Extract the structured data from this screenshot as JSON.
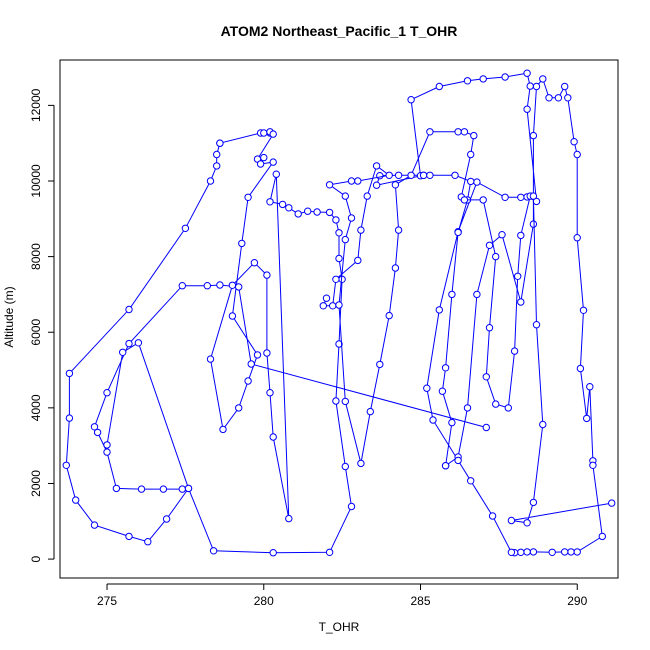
{
  "chart_data": {
    "type": "line",
    "title": "ATOM2 Northeast_Pacific_1 T_OHR",
    "xlabel": "T_OHR",
    "ylabel": "Altitude (m)",
    "xlim": [
      273.5,
      291.3
    ],
    "ylim": [
      -500,
      13200
    ],
    "xticks": [
      275,
      280,
      285,
      290
    ],
    "yticks": [
      0,
      2000,
      4000,
      6000,
      8000,
      10000,
      12000
    ],
    "grid": false,
    "legend": "none",
    "series": [
      {
        "color": "#0000ff",
        "marker": "open-circle",
        "points": [
          [
            287.1,
            3480
          ],
          [
            279.6,
            5160
          ],
          [
            279.2,
            7200
          ],
          [
            278.6,
            7250
          ],
          [
            278.2,
            7230
          ],
          [
            277.4,
            7230
          ],
          [
            275.7,
            5700
          ],
          [
            275.0,
            4400
          ],
          [
            274.6,
            3500
          ],
          [
            274.7,
            3350
          ],
          [
            275.0,
            2830
          ],
          [
            275.3,
            1870
          ],
          [
            276.1,
            1850
          ],
          [
            276.8,
            1850
          ],
          [
            277.4,
            1850
          ],
          [
            277.6,
            1870
          ],
          [
            276.9,
            1060
          ],
          [
            276.3,
            460
          ],
          [
            275.7,
            600
          ],
          [
            274.6,
            900
          ],
          [
            274.0,
            1560
          ],
          [
            273.7,
            2480
          ],
          [
            273.8,
            3730
          ],
          [
            273.8,
            4910
          ],
          [
            275.7,
            6600
          ],
          [
            277.5,
            8750
          ],
          [
            278.3,
            10000
          ],
          [
            278.5,
            10400
          ],
          [
            278.5,
            10700
          ],
          [
            278.6,
            11000
          ],
          [
            278.6,
            11000
          ],
          [
            279.9,
            11270
          ],
          [
            280.0,
            11270
          ],
          [
            280.2,
            11270
          ],
          [
            280.2,
            11300
          ],
          [
            280.3,
            11240
          ],
          [
            279.8,
            10580
          ],
          [
            280.0,
            10620
          ],
          [
            279.9,
            10450
          ],
          [
            280.3,
            10500
          ],
          [
            279.5,
            9570
          ],
          [
            279.3,
            8350
          ],
          [
            279.0,
            6430
          ],
          [
            279.8,
            5400
          ],
          [
            279.5,
            4710
          ],
          [
            279.2,
            4000
          ],
          [
            278.7,
            3430
          ],
          [
            278.3,
            5290
          ],
          [
            279.0,
            7240
          ],
          [
            279.7,
            7840
          ],
          [
            280.1,
            7510
          ],
          [
            280.1,
            5450
          ],
          [
            280.2,
            4400
          ],
          [
            280.3,
            3230
          ],
          [
            280.8,
            1070
          ],
          [
            280.4,
            10180
          ],
          [
            280.2,
            9450
          ],
          [
            280.6,
            9380
          ],
          [
            280.8,
            9290
          ],
          [
            281.1,
            9130
          ],
          [
            281.4,
            9200
          ],
          [
            281.7,
            9180
          ],
          [
            282.1,
            9170
          ],
          [
            282.3,
            8970
          ],
          [
            282.4,
            8630
          ],
          [
            282.4,
            7950
          ],
          [
            282.5,
            7400
          ],
          [
            282.4,
            5690
          ],
          [
            282.3,
            4180
          ],
          [
            282.6,
            2450
          ],
          [
            282.8,
            1390
          ],
          [
            282.1,
            180
          ],
          [
            280.3,
            170
          ],
          [
            278.4,
            220
          ],
          [
            277.6,
            1870
          ],
          [
            276.0,
            5720
          ],
          [
            275.5,
            5470
          ],
          [
            275.0,
            3020
          ]
        ]
      },
      {
        "color": "#0000ff",
        "marker": "open-circle",
        "points": [
          [
            285.8,
            2470
          ],
          [
            286.2,
            2700
          ],
          [
            286.5,
            4000
          ],
          [
            286.8,
            7000
          ],
          [
            287.2,
            8300
          ],
          [
            287.6,
            8580
          ],
          [
            288.2,
            6800
          ],
          [
            288.6,
            8860
          ],
          [
            288.6,
            11200
          ],
          [
            288.7,
            12500
          ],
          [
            288.9,
            12700
          ],
          [
            289.1,
            12200
          ],
          [
            289.4,
            12200
          ],
          [
            289.6,
            12500
          ],
          [
            289.7,
            12200
          ],
          [
            289.9,
            11040
          ],
          [
            290.0,
            10700
          ],
          [
            290.0,
            8500
          ],
          [
            290.2,
            6580
          ],
          [
            290.1,
            5040
          ],
          [
            290.3,
            3720
          ],
          [
            290.4,
            4560
          ],
          [
            290.5,
            2600
          ],
          [
            290.5,
            2480
          ],
          [
            290.8,
            600
          ],
          [
            290.0,
            190
          ],
          [
            289.8,
            190
          ],
          [
            289.6,
            190
          ],
          [
            289.2,
            180
          ],
          [
            288.6,
            190
          ],
          [
            288.4,
            190
          ],
          [
            288.2,
            180
          ],
          [
            288.0,
            170
          ],
          [
            287.9,
            180
          ],
          [
            287.3,
            1140
          ],
          [
            286.6,
            2070
          ],
          [
            286.2,
            2610
          ],
          [
            285.4,
            3680
          ],
          [
            285.2,
            4520
          ],
          [
            285.6,
            6590
          ],
          [
            286.2,
            8660
          ],
          [
            286.8,
            9970
          ],
          [
            287.7,
            9570
          ],
          [
            288.2,
            9570
          ],
          [
            288.4,
            9580
          ],
          [
            288.7,
            9460
          ],
          [
            288.4,
            11900
          ],
          [
            288.5,
            12510
          ],
          [
            288.4,
            12850
          ],
          [
            287.7,
            12750
          ],
          [
            287.0,
            12700
          ],
          [
            286.5,
            12650
          ],
          [
            285.6,
            12500
          ],
          [
            284.7,
            12150
          ],
          [
            285.0,
            10140
          ],
          [
            285.1,
            10150
          ],
          [
            283.6,
            9890
          ],
          [
            283.7,
            10140
          ],
          [
            284.3,
            10150
          ],
          [
            285.1,
            10150
          ],
          [
            285.3,
            10150
          ],
          [
            286.1,
            10150
          ],
          [
            286.6,
            9990
          ],
          [
            286.5,
            9500
          ],
          [
            286.2,
            8640
          ],
          [
            286.0,
            7000
          ],
          [
            285.8,
            5060
          ],
          [
            285.7,
            4440
          ],
          [
            286.0,
            3610
          ],
          [
            285.8,
            2470
          ]
        ]
      },
      {
        "color": "#0000ff",
        "marker": "open-circle",
        "points": [
          [
            282.0,
            6900
          ],
          [
            281.9,
            6700
          ],
          [
            282.2,
            6700
          ],
          [
            282.3,
            7400
          ],
          [
            283.0,
            7900
          ],
          [
            283.1,
            8700
          ],
          [
            283.3,
            9600
          ],
          [
            283.6,
            10400
          ],
          [
            284.0,
            10150
          ],
          [
            283.0,
            10000
          ],
          [
            282.8,
            10000
          ],
          [
            282.1,
            9900
          ],
          [
            282.6,
            9600
          ],
          [
            282.8,
            9020
          ],
          [
            282.6,
            8450
          ],
          [
            282.4,
            6720
          ],
          [
            282.6,
            4170
          ],
          [
            283.1,
            2530
          ],
          [
            283.4,
            3900
          ],
          [
            283.7,
            5150
          ],
          [
            284.0,
            6440
          ],
          [
            284.2,
            7700
          ],
          [
            284.3,
            8700
          ],
          [
            284.2,
            9900
          ],
          [
            284.7,
            10150
          ],
          [
            285.3,
            11300
          ],
          [
            286.2,
            11300
          ],
          [
            286.4,
            11300
          ],
          [
            286.7,
            11200
          ],
          [
            286.6,
            10700
          ],
          [
            286.3,
            9580
          ],
          [
            286.4,
            9500
          ],
          [
            287.0,
            9500
          ],
          [
            287.4,
            8000
          ],
          [
            287.2,
            6120
          ],
          [
            287.1,
            4820
          ],
          [
            287.4,
            4100
          ],
          [
            287.8,
            4000
          ],
          [
            288.0,
            5500
          ],
          [
            288.1,
            7480
          ],
          [
            288.2,
            8560
          ],
          [
            288.5,
            9600
          ],
          [
            288.6,
            9600
          ],
          [
            288.7,
            6200
          ],
          [
            288.9,
            3560
          ],
          [
            288.6,
            1500
          ],
          [
            288.4,
            960
          ],
          [
            287.9,
            1020
          ],
          [
            291.1,
            1480
          ]
        ]
      }
    ]
  }
}
